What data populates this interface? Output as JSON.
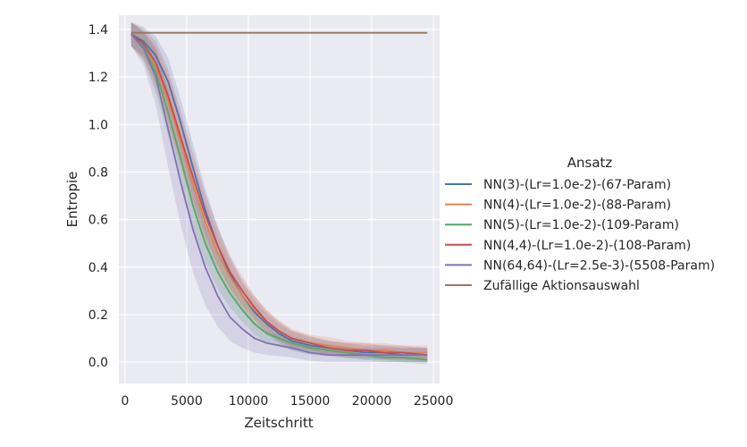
{
  "colors": {
    "plot_background": "#eaeaf2",
    "grid": "#ffffff",
    "text": "#262626"
  },
  "chart_data": {
    "type": "line",
    "title": "",
    "xlabel": "Zeitschritt",
    "ylabel": "Entropie",
    "xlim": [
      -500,
      25500
    ],
    "ylim": [
      -0.09,
      1.46
    ],
    "xticks": [
      0,
      5000,
      10000,
      15000,
      20000,
      25000
    ],
    "xtick_labels": [
      "0",
      "5000",
      "10000",
      "15000",
      "20000",
      "25000"
    ],
    "yticks": [
      0.0,
      0.2,
      0.4,
      0.6,
      0.8,
      1.0,
      1.2,
      1.4
    ],
    "ytick_labels": [
      "0.0",
      "0.2",
      "0.4",
      "0.6",
      "0.8",
      "1.0",
      "1.2",
      "1.4"
    ],
    "grid": true,
    "legend": {
      "title": "Ansatz",
      "placement": "right-outside"
    },
    "x": [
      500,
      1500,
      2500,
      3500,
      4500,
      5500,
      6500,
      7500,
      8500,
      9500,
      10500,
      11500,
      12500,
      13500,
      15000,
      16500,
      18000,
      19500,
      21000,
      22500,
      24500
    ],
    "series": [
      {
        "name": "NN(3)-(Lr=1.0e-2)-(67-Param)",
        "color": "#4c72b0",
        "values": [
          1.38,
          1.35,
          1.29,
          1.18,
          1.01,
          0.82,
          0.64,
          0.49,
          0.37,
          0.28,
          0.21,
          0.16,
          0.12,
          0.09,
          0.07,
          0.06,
          0.05,
          0.04,
          0.04,
          0.03,
          0.03
        ],
        "band": [
          0.05,
          0.06,
          0.08,
          0.1,
          0.1,
          0.1,
          0.09,
          0.08,
          0.07,
          0.06,
          0.05,
          0.045,
          0.04,
          0.04,
          0.035,
          0.03,
          0.03,
          0.03,
          0.03,
          0.03,
          0.03
        ]
      },
      {
        "name": "NN(4)-(Lr=1.0e-2)-(88-Param)",
        "color": "#dd8452",
        "values": [
          1.38,
          1.33,
          1.24,
          1.1,
          0.93,
          0.75,
          0.59,
          0.46,
          0.36,
          0.28,
          0.22,
          0.17,
          0.13,
          0.1,
          0.08,
          0.07,
          0.06,
          0.05,
          0.05,
          0.04,
          0.04
        ],
        "band": [
          0.05,
          0.06,
          0.09,
          0.11,
          0.11,
          0.1,
          0.09,
          0.08,
          0.07,
          0.06,
          0.055,
          0.05,
          0.045,
          0.04,
          0.035,
          0.035,
          0.03,
          0.03,
          0.03,
          0.03,
          0.03
        ]
      },
      {
        "name": "NN(5)-(Lr=1.0e-2)-(109-Param)",
        "color": "#55a868",
        "values": [
          1.38,
          1.33,
          1.22,
          1.05,
          0.86,
          0.66,
          0.5,
          0.38,
          0.29,
          0.22,
          0.16,
          0.12,
          0.1,
          0.08,
          0.06,
          0.05,
          0.04,
          0.03,
          0.02,
          0.02,
          0.01
        ],
        "band": [
          0.05,
          0.06,
          0.09,
          0.1,
          0.1,
          0.09,
          0.08,
          0.07,
          0.06,
          0.05,
          0.045,
          0.04,
          0.035,
          0.03,
          0.03,
          0.025,
          0.025,
          0.02,
          0.02,
          0.02,
          0.02
        ]
      },
      {
        "name": "NN(4,4)-(Lr=1.0e-2)-(108-Param)",
        "color": "#c44e52",
        "values": [
          1.38,
          1.34,
          1.26,
          1.12,
          0.95,
          0.78,
          0.62,
          0.49,
          0.38,
          0.3,
          0.23,
          0.17,
          0.13,
          0.1,
          0.08,
          0.06,
          0.05,
          0.05,
          0.04,
          0.04,
          0.03
        ],
        "band": [
          0.05,
          0.06,
          0.09,
          0.11,
          0.11,
          0.1,
          0.09,
          0.08,
          0.07,
          0.06,
          0.05,
          0.045,
          0.04,
          0.035,
          0.03,
          0.03,
          0.03,
          0.03,
          0.03,
          0.03,
          0.03
        ]
      },
      {
        "name": "NN(64,64)-(Lr=2.5e-3)-(5508-Param)",
        "color": "#8172b3",
        "values": [
          1.38,
          1.32,
          1.2,
          0.98,
          0.76,
          0.56,
          0.4,
          0.28,
          0.19,
          0.14,
          0.1,
          0.08,
          0.07,
          0.06,
          0.04,
          0.03,
          0.03,
          0.03,
          0.03,
          0.03,
          0.03
        ],
        "band": [
          0.05,
          0.07,
          0.12,
          0.16,
          0.18,
          0.18,
          0.16,
          0.13,
          0.1,
          0.08,
          0.06,
          0.05,
          0.045,
          0.04,
          0.035,
          0.03,
          0.03,
          0.03,
          0.03,
          0.03,
          0.03
        ]
      },
      {
        "name": "Zufällige Aktionsauswahl",
        "color": "#937860",
        "values": [
          1.386,
          1.386,
          1.386,
          1.386,
          1.386,
          1.386,
          1.386,
          1.386,
          1.386,
          1.386,
          1.386,
          1.386,
          1.386,
          1.386,
          1.386,
          1.386,
          1.386,
          1.386,
          1.386,
          1.386,
          1.386
        ]
      }
    ]
  }
}
